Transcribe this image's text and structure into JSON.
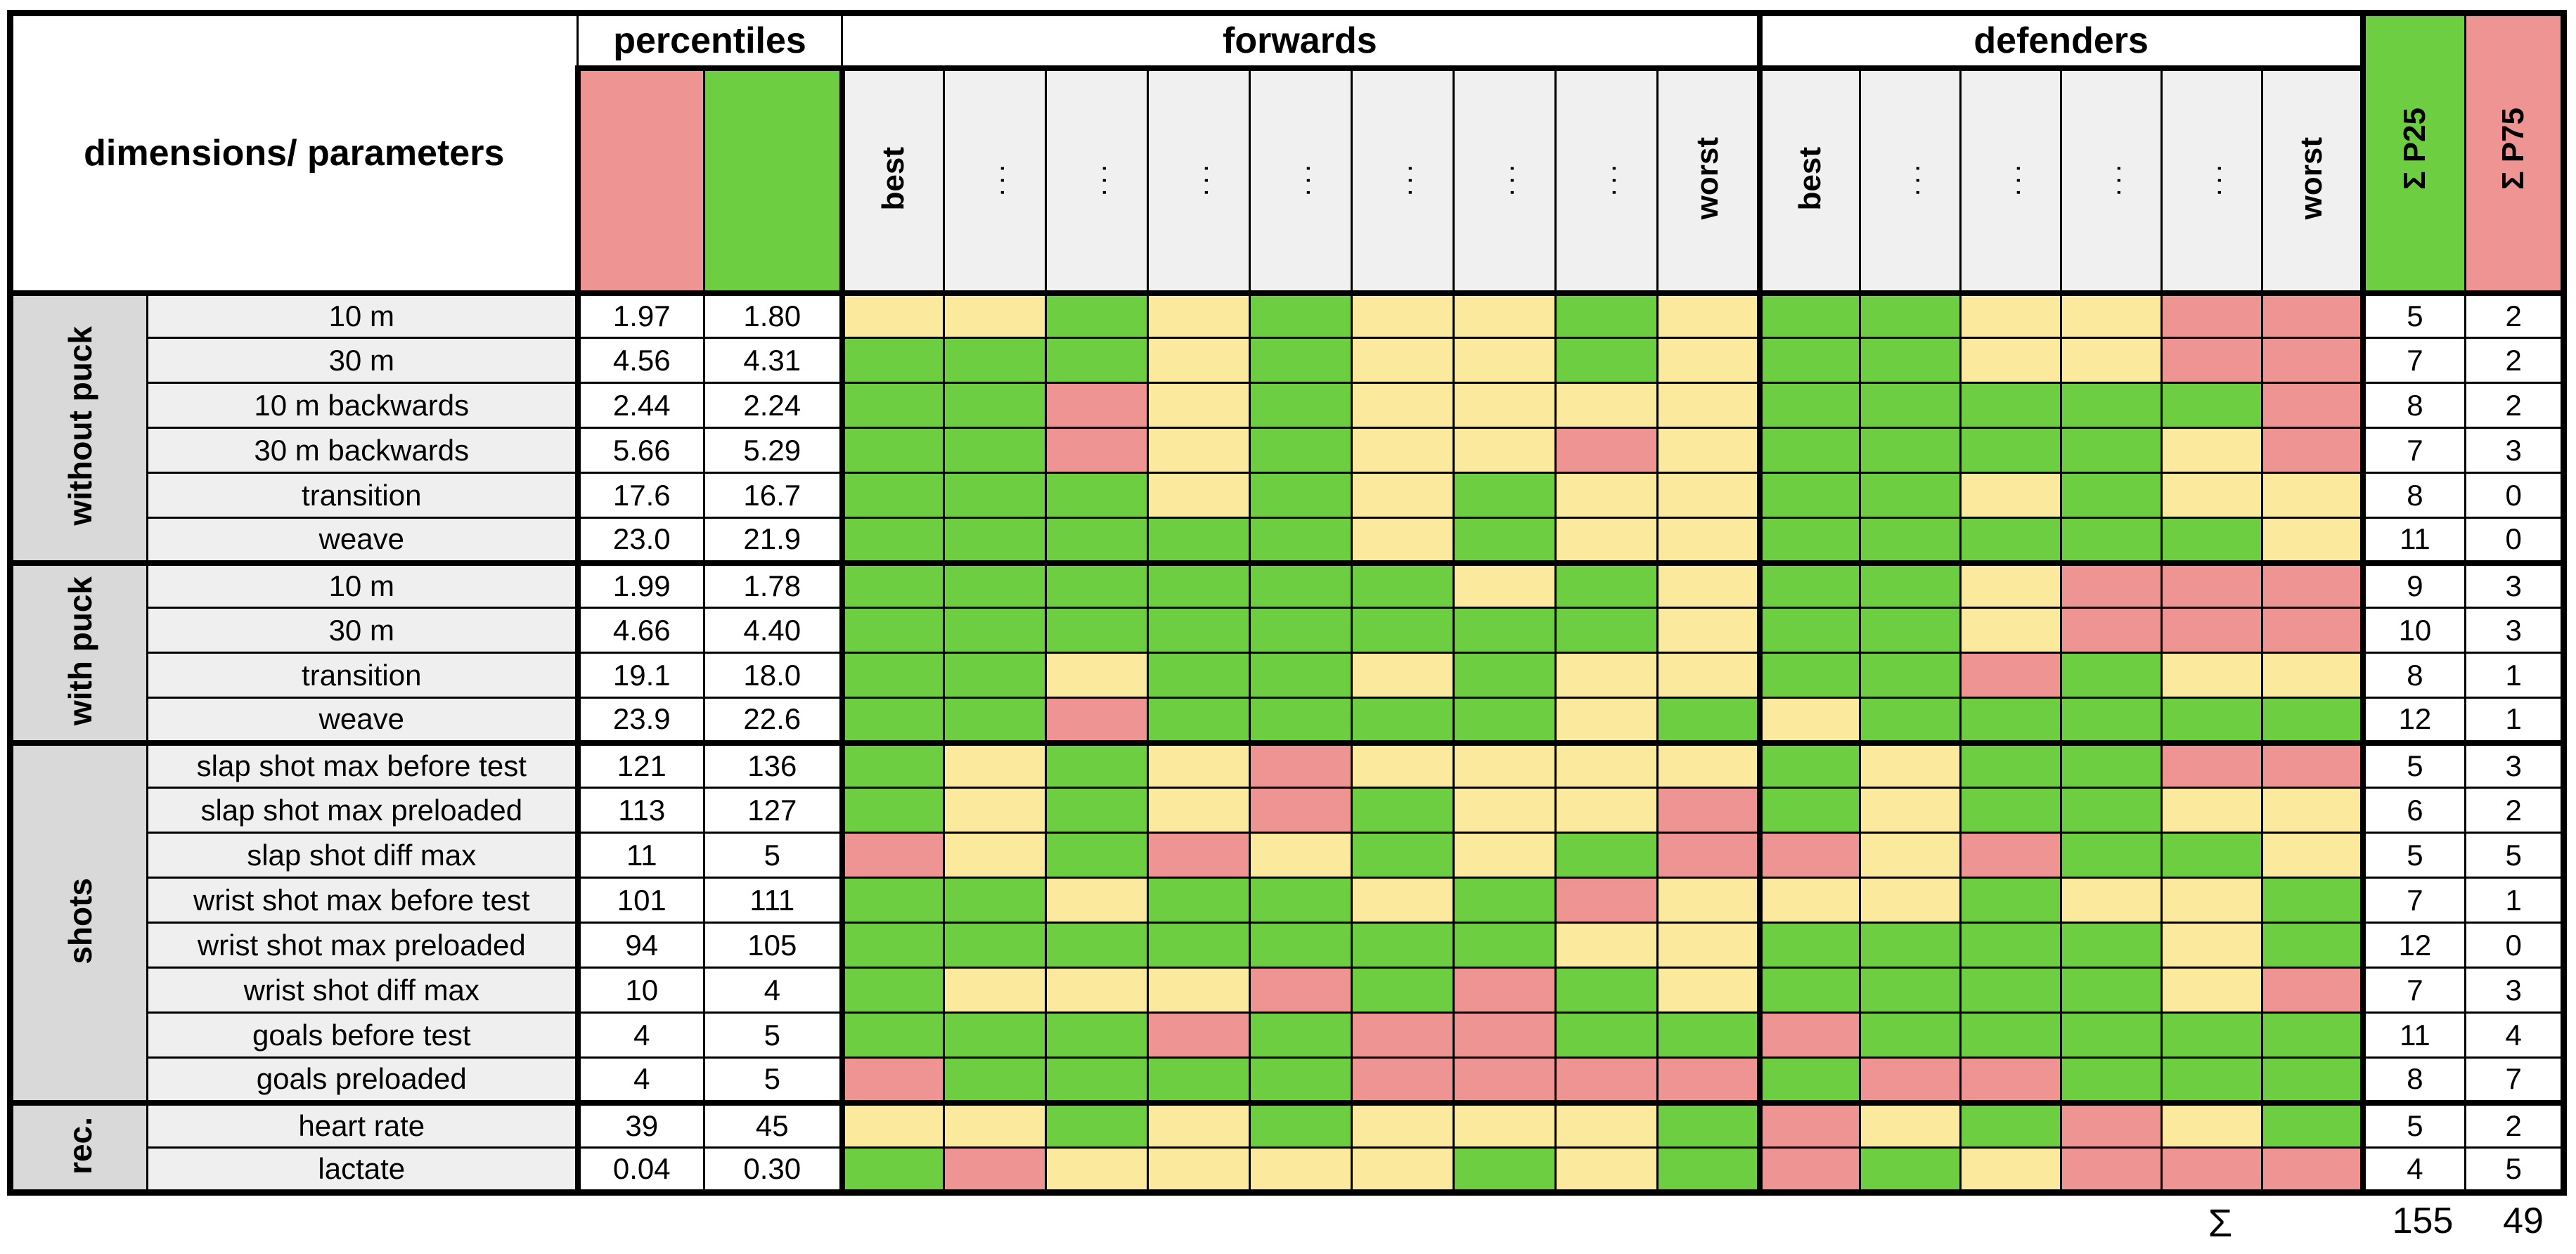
{
  "header": {
    "dimensions_label": "dimensions/ parameters",
    "percentiles_label": "percentiles",
    "forwards_label": "forwards",
    "defenders_label": "defenders",
    "best_label": "best",
    "worst_label": "worst",
    "dots_label": "...",
    "sum_p25_label": "Σ P25",
    "sum_p75_label": "Σ P75",
    "forwards_player_columns": 9,
    "defenders_player_columns": 6
  },
  "colors": {
    "G": "#6dce41",
    "Y": "#fbe99d",
    "R": "#ee9594",
    "green_accent": "#6dce41",
    "yellow_accent": "#fbe99d",
    "red_accent": "#ee9594",
    "group_label_bg": "#d9d9d9",
    "param_label_bg": "#efefef",
    "rotated_header_bg": "#f0f0f0"
  },
  "legend_note": "cell codes: G=green (better than P25), Y=yellow (between percentiles), R=red (worse than P75)",
  "groups": [
    {
      "label": "without puck",
      "rows": [
        {
          "param": "10 m",
          "p75": "1.97",
          "p25": "1.80",
          "forwards": [
            "Y",
            "Y",
            "G",
            "Y",
            "G",
            "Y",
            "Y",
            "G",
            "Y"
          ],
          "defenders": [
            "G",
            "G",
            "Y",
            "Y",
            "R",
            "R"
          ],
          "sum_p25": "5",
          "sum_p75": "2"
        },
        {
          "param": "30 m",
          "p75": "4.56",
          "p25": "4.31",
          "forwards": [
            "G",
            "G",
            "G",
            "Y",
            "G",
            "Y",
            "Y",
            "G",
            "Y"
          ],
          "defenders": [
            "G",
            "G",
            "Y",
            "Y",
            "R",
            "R"
          ],
          "sum_p25": "7",
          "sum_p75": "2"
        },
        {
          "param": "10 m backwards",
          "p75": "2.44",
          "p25": "2.24",
          "forwards": [
            "G",
            "G",
            "R",
            "Y",
            "G",
            "Y",
            "Y",
            "Y",
            "Y"
          ],
          "defenders": [
            "G",
            "G",
            "G",
            "G",
            "G",
            "R"
          ],
          "sum_p25": "8",
          "sum_p75": "2"
        },
        {
          "param": "30 m backwards",
          "p75": "5.66",
          "p25": "5.29",
          "forwards": [
            "G",
            "G",
            "R",
            "Y",
            "G",
            "Y",
            "Y",
            "R",
            "Y"
          ],
          "defenders": [
            "G",
            "G",
            "G",
            "G",
            "Y",
            "R"
          ],
          "sum_p25": "7",
          "sum_p75": "3"
        },
        {
          "param": "transition",
          "p75": "17.6",
          "p25": "16.7",
          "forwards": [
            "G",
            "G",
            "G",
            "Y",
            "G",
            "Y",
            "G",
            "Y",
            "Y"
          ],
          "defenders": [
            "G",
            "G",
            "Y",
            "G",
            "Y",
            "Y"
          ],
          "sum_p25": "8",
          "sum_p75": "0"
        },
        {
          "param": "weave",
          "p75": "23.0",
          "p25": "21.9",
          "forwards": [
            "G",
            "G",
            "G",
            "G",
            "G",
            "Y",
            "G",
            "Y",
            "Y"
          ],
          "defenders": [
            "G",
            "G",
            "G",
            "G",
            "G",
            "Y"
          ],
          "sum_p25": "11",
          "sum_p75": "0"
        }
      ]
    },
    {
      "label": "with puck",
      "rows": [
        {
          "param": "10 m",
          "p75": "1.99",
          "p25": "1.78",
          "forwards": [
            "G",
            "G",
            "G",
            "G",
            "G",
            "G",
            "Y",
            "G",
            "Y"
          ],
          "defenders": [
            "G",
            "G",
            "Y",
            "R",
            "R",
            "R"
          ],
          "sum_p25": "9",
          "sum_p75": "3"
        },
        {
          "param": "30 m",
          "p75": "4.66",
          "p25": "4.40",
          "forwards": [
            "G",
            "G",
            "G",
            "G",
            "G",
            "G",
            "G",
            "G",
            "Y"
          ],
          "defenders": [
            "G",
            "G",
            "Y",
            "R",
            "R",
            "R"
          ],
          "sum_p25": "10",
          "sum_p75": "3"
        },
        {
          "param": "transition",
          "p75": "19.1",
          "p25": "18.0",
          "forwards": [
            "G",
            "G",
            "Y",
            "G",
            "G",
            "Y",
            "G",
            "Y",
            "Y"
          ],
          "defenders": [
            "G",
            "G",
            "R",
            "G",
            "Y",
            "Y"
          ],
          "sum_p25": "8",
          "sum_p75": "1"
        },
        {
          "param": "weave",
          "p75": "23.9",
          "p25": "22.6",
          "forwards": [
            "G",
            "G",
            "R",
            "G",
            "G",
            "G",
            "G",
            "Y",
            "G"
          ],
          "defenders": [
            "Y",
            "G",
            "G",
            "G",
            "G",
            "G"
          ],
          "sum_p25": "12",
          "sum_p75": "1"
        }
      ]
    },
    {
      "label": "shots",
      "rows": [
        {
          "param": "slap shot max before test",
          "p75": "121",
          "p25": "136",
          "forwards": [
            "G",
            "Y",
            "G",
            "Y",
            "R",
            "Y",
            "Y",
            "Y",
            "Y"
          ],
          "defenders": [
            "G",
            "Y",
            "G",
            "G",
            "R",
            "R"
          ],
          "sum_p25": "5",
          "sum_p75": "3"
        },
        {
          "param": "slap shot max preloaded",
          "p75": "113",
          "p25": "127",
          "forwards": [
            "G",
            "Y",
            "G",
            "Y",
            "R",
            "G",
            "Y",
            "Y",
            "R"
          ],
          "defenders": [
            "G",
            "Y",
            "G",
            "G",
            "Y",
            "Y"
          ],
          "sum_p25": "6",
          "sum_p75": "2"
        },
        {
          "param": "slap shot diff max",
          "p75": "11",
          "p25": "5",
          "forwards": [
            "R",
            "Y",
            "G",
            "R",
            "Y",
            "G",
            "Y",
            "G",
            "R"
          ],
          "defenders": [
            "R",
            "Y",
            "R",
            "G",
            "G",
            "Y"
          ],
          "sum_p25": "5",
          "sum_p75": "5"
        },
        {
          "param": "wrist shot max before test",
          "p75": "101",
          "p25": "111",
          "forwards": [
            "G",
            "G",
            "Y",
            "G",
            "G",
            "Y",
            "G",
            "R",
            "Y"
          ],
          "defenders": [
            "Y",
            "Y",
            "G",
            "Y",
            "Y",
            "G"
          ],
          "sum_p25": "7",
          "sum_p75": "1"
        },
        {
          "param": "wrist shot max preloaded",
          "p75": "94",
          "p25": "105",
          "forwards": [
            "G",
            "G",
            "G",
            "G",
            "G",
            "G",
            "G",
            "Y",
            "Y"
          ],
          "defenders": [
            "G",
            "G",
            "G",
            "G",
            "Y",
            "G"
          ],
          "sum_p25": "12",
          "sum_p75": "0"
        },
        {
          "param": "wrist shot diff max",
          "p75": "10",
          "p25": "4",
          "forwards": [
            "G",
            "Y",
            "Y",
            "Y",
            "R",
            "G",
            "R",
            "G",
            "Y"
          ],
          "defenders": [
            "G",
            "G",
            "G",
            "G",
            "Y",
            "R"
          ],
          "sum_p25": "7",
          "sum_p75": "3"
        },
        {
          "param": "goals before test",
          "p75": "4",
          "p25": "5",
          "forwards": [
            "G",
            "G",
            "G",
            "R",
            "G",
            "R",
            "R",
            "G",
            "G"
          ],
          "defenders": [
            "R",
            "G",
            "G",
            "G",
            "G",
            "G"
          ],
          "sum_p25": "11",
          "sum_p75": "4"
        },
        {
          "param": "goals preloaded",
          "p75": "4",
          "p25": "5",
          "forwards": [
            "R",
            "G",
            "G",
            "G",
            "G",
            "R",
            "R",
            "R",
            "R"
          ],
          "defenders": [
            "G",
            "R",
            "R",
            "G",
            "G",
            "G"
          ],
          "sum_p25": "8",
          "sum_p75": "7"
        }
      ]
    },
    {
      "label": "rec.",
      "rows": [
        {
          "param": "heart rate",
          "p75": "39",
          "p25": "45",
          "forwards": [
            "Y",
            "Y",
            "G",
            "Y",
            "G",
            "Y",
            "Y",
            "Y",
            "G"
          ],
          "defenders": [
            "R",
            "Y",
            "G",
            "R",
            "Y",
            "G"
          ],
          "sum_p25": "5",
          "sum_p75": "2"
        },
        {
          "param": "lactate",
          "p75": "0.04",
          "p25": "0.30",
          "forwards": [
            "G",
            "R",
            "Y",
            "Y",
            "Y",
            "Y",
            "G",
            "Y",
            "G"
          ],
          "defenders": [
            "R",
            "G",
            "Y",
            "R",
            "R",
            "R"
          ],
          "sum_p25": "4",
          "sum_p75": "5"
        }
      ]
    }
  ],
  "footer": {
    "sigma_label": "Σ",
    "total_p25": "155",
    "total_p75": "49"
  }
}
